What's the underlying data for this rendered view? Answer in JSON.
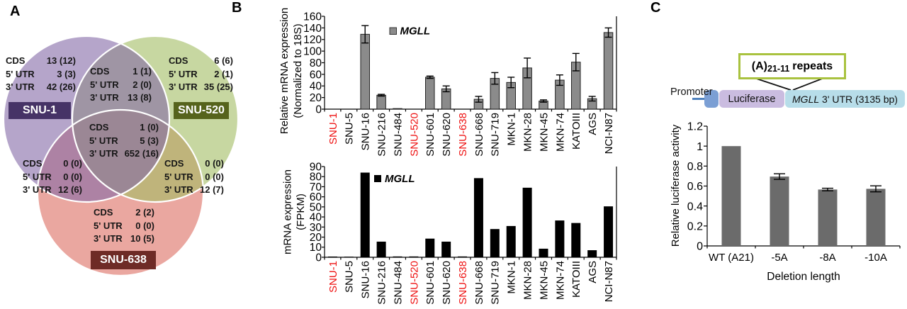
{
  "panel_labels": {
    "a": "A",
    "b": "B",
    "c": "C"
  },
  "venn": {
    "row_labels": [
      "CDS",
      "5' UTR",
      "3' UTR"
    ],
    "sets": [
      {
        "label": "SNU-1",
        "box_color": "#463366",
        "fill": "#8369a6"
      },
      {
        "label": "SNU-520",
        "box_color": "#56631c",
        "fill": "#a2bc62"
      },
      {
        "label": "SNU-638",
        "box_color": "#6e2b26",
        "fill": "#dc6c61"
      }
    ],
    "regions": {
      "snu1": [
        "13 (12)",
        "3 (3)",
        "42 (26)"
      ],
      "snu1_snu520": [
        "1 (1)",
        "2 (0)",
        "13 (8)"
      ],
      "snu520": [
        "6 (6)",
        "2 (1)",
        "35 (25)"
      ],
      "center": [
        "1 (0)",
        "5 (3)",
        "652 (16)"
      ],
      "snu1_snu638": [
        "0 (0)",
        "0 (0)",
        "12 (6)"
      ],
      "snu520_snu638": [
        "0 (0)",
        "0 (0)",
        "12 (7)"
      ],
      "snu638": [
        "2 (2)",
        "0 (0)",
        "10 (5)"
      ]
    }
  },
  "chart_data": [
    {
      "id": "b_top",
      "type": "bar",
      "legend": "MGLL",
      "ylabel_lines": [
        "Relative mRNA expression",
        "(Normalized to 18S)"
      ],
      "ylim": [
        0,
        160
      ],
      "ystep": 20,
      "categories": [
        "SNU-1",
        "SNU-5",
        "SNU-16",
        "SNU-216",
        "SNU-484",
        "SNU-520",
        "SNU-601",
        "SNU-620",
        "SNU-638",
        "SNU-668",
        "SNU-719",
        "MKN-1",
        "MKN-28",
        "MKN-45",
        "MKN-74",
        "KATOIII",
        "AGS",
        "NCI-N87"
      ],
      "values": [
        0,
        0,
        129,
        24,
        1,
        0,
        55,
        35,
        0,
        17,
        53,
        46,
        71,
        14,
        50,
        81,
        18,
        132
      ],
      "errors": [
        0,
        0,
        15,
        1.5,
        0,
        0,
        2,
        5,
        0,
        5,
        10,
        9,
        17,
        2,
        9,
        15,
        4,
        8
      ],
      "red_categories": [
        "SNU-1",
        "SNU-520",
        "SNU-638"
      ],
      "red_label_color": "#ee1111",
      "bar_color": "#8b8b8b",
      "bar_border": "#222222"
    },
    {
      "id": "b_bottom",
      "type": "bar",
      "legend": "MGLL",
      "ylabel_lines": [
        "mRNA expression",
        "(FPKM)"
      ],
      "ylim": [
        0,
        90
      ],
      "ystep": 10,
      "categories": [
        "SNU-1",
        "SNU-5",
        "SNU-16",
        "SNU-216",
        "SNU-484",
        "SNU-520",
        "SNU-601",
        "SNU-620",
        "SNU-638",
        "SNU-668",
        "SNU-719",
        "MKN-1",
        "MKN-28",
        "MKN-45",
        "MKN-74",
        "KATOIII",
        "AGS",
        "NCI-N87"
      ],
      "values": [
        0.7,
        0.2,
        84,
        15.5,
        0.8,
        0.8,
        18.5,
        15.5,
        0.8,
        78.5,
        28,
        31,
        69,
        8.5,
        36.5,
        34,
        7,
        50.5
      ],
      "errors": [
        0,
        0,
        0,
        0,
        0,
        0,
        0,
        0,
        0,
        0,
        0,
        0,
        0,
        0,
        0,
        0,
        0,
        0
      ],
      "red_categories": [
        "SNU-1",
        "SNU-520",
        "SNU-638"
      ],
      "red_label_color": "#ee1111",
      "bar_color": "#000000",
      "bar_border": "none"
    },
    {
      "id": "c",
      "type": "bar",
      "ylabel": "Relative luciferase activity",
      "xlabel": "Deletion length",
      "ylim": [
        0,
        1.2
      ],
      "ystep": 0.2,
      "categories": [
        "WT (A21)",
        "-5A",
        "-8A",
        "-10A"
      ],
      "values": [
        1.0,
        0.695,
        0.565,
        0.572
      ],
      "errors": [
        0,
        0.028,
        0.013,
        0.03
      ],
      "red_categories": [],
      "red_label_color": "#ee1111",
      "bar_color": "#6b6b6b",
      "bar_border": "none"
    }
  ],
  "construct": {
    "promoter_label": "Promoter",
    "luciferase_label": "Luciferase",
    "utr_italic": "MGLL",
    "utr_rest": " 3' UTR (3135 bp)",
    "callout_prefix": "(A)",
    "callout_sub": "21-11",
    "callout_suffix": "repeats",
    "colors": {
      "promoter_box": "#7b9fd4",
      "luciferase_box": "#cabce0",
      "utr_box": "#b7dde9",
      "promoter_line": "#4f81bd",
      "callout_border": "#a9c23f"
    }
  }
}
